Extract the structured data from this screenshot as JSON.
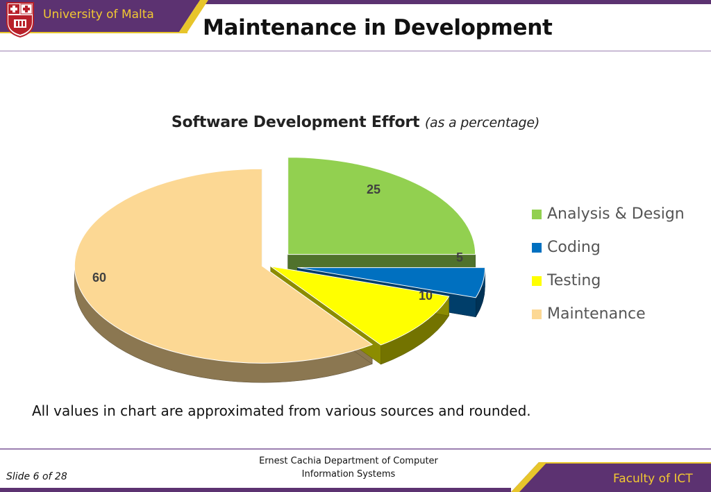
{
  "header": {
    "university": "University of Malta",
    "title": "Maintenance in Development"
  },
  "chart_data": {
    "type": "pie",
    "title": "Software Development Effort",
    "subtitle": "(as a percentage)",
    "categories": [
      "Analysis & Design",
      "Coding",
      "Testing",
      "Maintenance"
    ],
    "values": [
      25,
      5,
      10,
      60
    ],
    "data_labels": [
      "25",
      "5",
      "10",
      "60"
    ],
    "colors": [
      "#92d050",
      "#0070c0",
      "#ffff00",
      "#fcd894"
    ],
    "legend_position": "right",
    "exploded": true,
    "three_d": true
  },
  "note": "All values in chart are approximated from various sources and rounded.",
  "footer": {
    "slide_number": "Slide 6 of 28",
    "dept_line1": "Ernest Cachia Department of Computer",
    "dept_line2": "Information Systems",
    "faculty": "Faculty of ICT"
  },
  "colors": {
    "brand_purple": "#5c3271",
    "brand_gold": "#e7c52b",
    "gold_text": "#f2c832"
  },
  "icons": [
    "university-crest-icon"
  ]
}
